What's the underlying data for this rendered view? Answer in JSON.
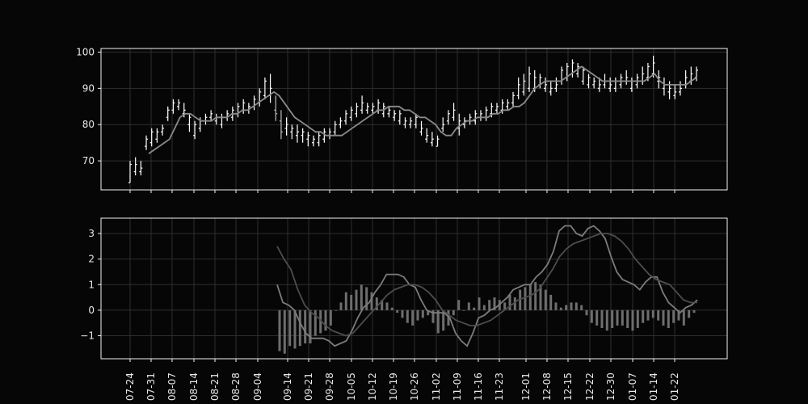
{
  "chart_data": [
    {
      "type": "ohlc",
      "title": "",
      "xlabel": "",
      "ylabel": "",
      "ylim": [
        62,
        101
      ],
      "yticks": [
        "70",
        "80",
        "90",
        "100"
      ],
      "grid": true,
      "series": [
        {
          "kind": "ohlc",
          "values": [
            [
              64,
              70,
              64,
              69
            ],
            [
              67,
              71,
              66,
              69
            ],
            [
              67,
              70,
              66,
              68
            ],
            [
              74,
              77,
              73,
              76
            ],
            [
              75,
              79,
              74,
              78
            ],
            [
              76,
              79,
              75,
              78
            ],
            [
              78,
              80,
              77,
              79
            ],
            [
              82,
              85,
              81,
              84
            ],
            [
              84,
              87,
              83,
              86
            ],
            [
              85,
              87,
              84,
              86
            ],
            [
              83,
              86,
              82,
              84
            ],
            [
              80,
              83,
              78,
              82
            ],
            [
              77,
              81,
              76,
              80
            ],
            [
              79,
              82,
              78,
              81
            ],
            [
              81,
              83,
              80,
              82
            ],
            [
              82,
              84,
              81,
              83
            ],
            [
              81,
              83,
              80,
              82
            ],
            [
              80,
              83,
              79,
              82
            ],
            [
              82,
              84,
              81,
              83
            ],
            [
              82,
              85,
              81,
              84
            ],
            [
              83,
              86,
              82,
              85
            ],
            [
              84,
              87,
              83,
              86
            ],
            [
              84,
              86,
              83,
              85
            ],
            [
              85,
              88,
              84,
              87
            ],
            [
              86,
              90,
              85,
              89
            ],
            [
              88,
              93,
              87,
              92
            ],
            [
              88,
              94,
              86,
              90
            ],
            [
              84,
              88,
              81,
              83
            ],
            [
              81,
              84,
              76,
              78
            ],
            [
              79,
              82,
              77,
              80
            ],
            [
              78,
              80,
              76,
              79
            ],
            [
              77,
              80,
              75,
              78
            ],
            [
              77,
              79,
              75,
              78
            ],
            [
              76,
              78,
              74,
              77
            ],
            [
              75,
              77,
              74,
              76
            ],
            [
              75,
              78,
              74,
              77
            ],
            [
              76,
              79,
              75,
              78
            ],
            [
              77,
              79,
              76,
              78
            ],
            [
              78,
              81,
              77,
              80
            ],
            [
              80,
              82,
              79,
              81
            ],
            [
              81,
              84,
              80,
              83
            ],
            [
              82,
              85,
              81,
              84
            ],
            [
              83,
              86,
              82,
              85
            ],
            [
              84,
              88,
              83,
              86
            ],
            [
              84,
              86,
              83,
              85
            ],
            [
              84,
              86,
              83,
              85
            ],
            [
              84,
              87,
              83,
              86
            ],
            [
              83,
              86,
              82,
              85
            ],
            [
              83,
              85,
              82,
              84
            ],
            [
              82,
              84,
              81,
              83
            ],
            [
              81,
              84,
              80,
              83
            ],
            [
              80,
              82,
              79,
              81
            ],
            [
              80,
              82,
              79,
              81
            ],
            [
              80,
              83,
              79,
              82
            ],
            [
              78,
              81,
              77,
              79
            ],
            [
              76,
              79,
              75,
              77
            ],
            [
              75,
              78,
              74,
              76
            ],
            [
              74,
              77,
              74,
              76
            ],
            [
              79,
              82,
              78,
              80
            ],
            [
              81,
              84,
              80,
              83
            ],
            [
              82,
              86,
              81,
              84
            ],
            [
              79,
              83,
              77,
              81
            ],
            [
              80,
              82,
              79,
              81
            ],
            [
              81,
              83,
              80,
              82
            ],
            [
              81,
              84,
              80,
              83
            ],
            [
              82,
              84,
              81,
              83
            ],
            [
              82,
              85,
              81,
              84
            ],
            [
              83,
              86,
              82,
              85
            ],
            [
              84,
              86,
              83,
              85
            ],
            [
              84,
              87,
              83,
              86
            ],
            [
              85,
              87,
              84,
              86
            ],
            [
              86,
              89,
              85,
              88
            ],
            [
              88,
              93,
              87,
              91
            ],
            [
              89,
              94,
              88,
              92
            ],
            [
              90,
              96,
              89,
              94
            ],
            [
              90,
              95,
              89,
              93
            ],
            [
              91,
              94,
              90,
              93
            ],
            [
              90,
              93,
              89,
              91
            ],
            [
              89,
              92,
              88,
              90
            ],
            [
              90,
              93,
              89,
              91
            ],
            [
              92,
              96,
              91,
              95
            ],
            [
              93,
              97,
              92,
              96
            ],
            [
              94,
              98,
              93,
              97
            ],
            [
              94,
              97,
              93,
              96
            ],
            [
              92,
              96,
              91,
              95
            ],
            [
              91,
              94,
              90,
              93
            ],
            [
              91,
              93,
              90,
              92
            ],
            [
              90,
              93,
              89,
              91
            ],
            [
              91,
              94,
              90,
              92
            ],
            [
              90,
              93,
              89,
              91
            ],
            [
              90,
              93,
              89,
              92
            ],
            [
              91,
              94,
              90,
              93
            ],
            [
              92,
              95,
              91,
              93
            ],
            [
              90,
              93,
              89,
              92
            ],
            [
              91,
              94,
              90,
              93
            ],
            [
              92,
              96,
              91,
              94
            ],
            [
              93,
              97,
              92,
              96
            ],
            [
              94,
              99,
              93,
              97
            ],
            [
              92,
              95,
              90,
              93
            ],
            [
              90,
              93,
              88,
              91
            ],
            [
              89,
              92,
              87,
              90
            ],
            [
              88,
              91,
              87,
              89
            ],
            [
              89,
              92,
              88,
              90
            ],
            [
              91,
              95,
              90,
              93
            ],
            [
              92,
              96,
              91,
              94
            ],
            [
              93,
              96,
              92,
              95
            ]
          ]
        },
        {
          "kind": "line",
          "values": [
            72,
            73,
            74,
            75,
            76,
            79,
            82,
            83,
            83,
            82,
            81,
            81,
            81,
            82,
            82,
            82,
            83,
            83,
            84,
            84,
            85,
            86,
            87,
            88,
            89,
            88,
            86,
            84,
            82,
            81,
            80,
            79,
            78,
            78,
            77,
            77,
            77,
            77,
            78,
            79,
            80,
            81,
            82,
            83,
            84,
            84,
            85,
            85,
            85,
            84,
            84,
            83,
            82,
            82,
            81,
            80,
            78,
            77,
            77,
            79,
            80,
            81,
            81,
            82,
            82,
            82,
            83,
            83,
            84,
            84,
            85,
            85,
            86,
            88,
            90,
            91,
            92,
            92,
            92,
            92,
            93,
            94,
            95,
            96,
            95,
            94,
            93,
            92,
            92,
            92,
            92,
            92,
            92,
            92,
            92,
            92,
            93,
            94,
            92,
            91,
            91,
            91,
            91,
            91,
            92,
            93
          ]
        }
      ]
    },
    {
      "type": "bar",
      "title": "",
      "xlabel": "",
      "ylabel": "",
      "ylim": [
        -1.9,
        3.6
      ],
      "yticks": [
        "−1",
        "0",
        "1",
        "2",
        "3"
      ],
      "grid": true,
      "x_tick_labels": [
        "07-24",
        "07-31",
        "08-07",
        "08-14",
        "08-21",
        "08-28",
        "09-04",
        "09-14",
        "09-21",
        "09-28",
        "10-05",
        "10-12",
        "10-19",
        "10-26",
        "11-02",
        "11-09",
        "11-16",
        "11-23",
        "12-01",
        "12-08",
        "12-15",
        "12-22",
        "12-30",
        "01-07",
        "01-14",
        "01-22"
      ],
      "series": [
        {
          "kind": "bar",
          "values": [
            -1.6,
            -1.7,
            -1.4,
            -1.5,
            -1.4,
            -1.3,
            -1.3,
            -1.0,
            -0.9,
            -0.8,
            -0.6,
            0.0,
            0.3,
            0.7,
            0.6,
            0.8,
            1.0,
            0.9,
            0.7,
            0.5,
            0.4,
            0.3,
            0.1,
            -0.1,
            -0.3,
            -0.5,
            -0.6,
            -0.4,
            -0.3,
            -0.2,
            -0.5,
            -0.9,
            -0.8,
            -0.6,
            -0.2,
            0.4,
            0.0,
            0.3,
            0.1,
            0.5,
            0.2,
            0.4,
            0.5,
            0.4,
            0.3,
            0.6,
            0.5,
            0.8,
            0.9,
            1.0,
            1.1,
            1.0,
            0.8,
            0.6,
            0.3,
            0.1,
            0.2,
            0.3,
            0.3,
            0.2,
            -0.2,
            -0.5,
            -0.6,
            -0.7,
            -0.8,
            -0.7,
            -0.6,
            -0.6,
            -0.7,
            -0.8,
            -0.7,
            -0.5,
            -0.4,
            -0.3,
            -0.4,
            -0.6,
            -0.7,
            -0.5,
            -0.4,
            -0.6,
            -0.3,
            -0.1
          ]
        },
        {
          "kind": "line",
          "values": [
            1.0,
            0.3,
            0.2,
            0.0,
            -0.5,
            -0.9,
            -1.1,
            -1.1,
            -1.1,
            -1.2,
            -1.4,
            -1.3,
            -1.2,
            -0.8,
            -0.3,
            0.1,
            0.3,
            0.7,
            1.0,
            1.4,
            1.4,
            1.4,
            1.3,
            1.0,
            0.9,
            0.4,
            0.0,
            -0.1,
            -0.1,
            -0.1,
            -0.3,
            -0.9,
            -1.2,
            -1.4,
            -0.9,
            -0.3,
            -0.2,
            0.0,
            0.1,
            0.3,
            0.5,
            0.8,
            0.9,
            1.0,
            1.0,
            1.3,
            1.5,
            1.8,
            2.3,
            3.1,
            3.3,
            3.3,
            3.0,
            2.9,
            3.2,
            3.3,
            3.1,
            2.8,
            2.1,
            1.5,
            1.2,
            1.1,
            1.0,
            0.8,
            1.1,
            1.3,
            1.3,
            0.7,
            0.3,
            0.1,
            -0.1,
            0.1,
            0.2,
            0.4
          ]
        },
        {
          "kind": "line",
          "values": [
            2.5,
            2.0,
            1.6,
            0.8,
            0.2,
            -0.1,
            -0.3,
            -0.6,
            -0.8,
            -0.9,
            -1.0,
            -0.9,
            -0.6,
            -0.3,
            0.0,
            0.3,
            0.6,
            0.8,
            0.9,
            1.0,
            1.0,
            0.9,
            0.7,
            0.4,
            0.0,
            -0.2,
            -0.4,
            -0.5,
            -0.6,
            -0.6,
            -0.5,
            -0.4,
            -0.2,
            0.0,
            0.2,
            0.4,
            0.5,
            0.6,
            0.8,
            1.2,
            1.6,
            2.1,
            2.4,
            2.6,
            2.7,
            2.8,
            2.9,
            3.0,
            3.0,
            2.9,
            2.7,
            2.4,
            2.0,
            1.7,
            1.4,
            1.2,
            1.1,
            1.0,
            0.7,
            0.4,
            0.3,
            0.3
          ]
        }
      ]
    }
  ]
}
